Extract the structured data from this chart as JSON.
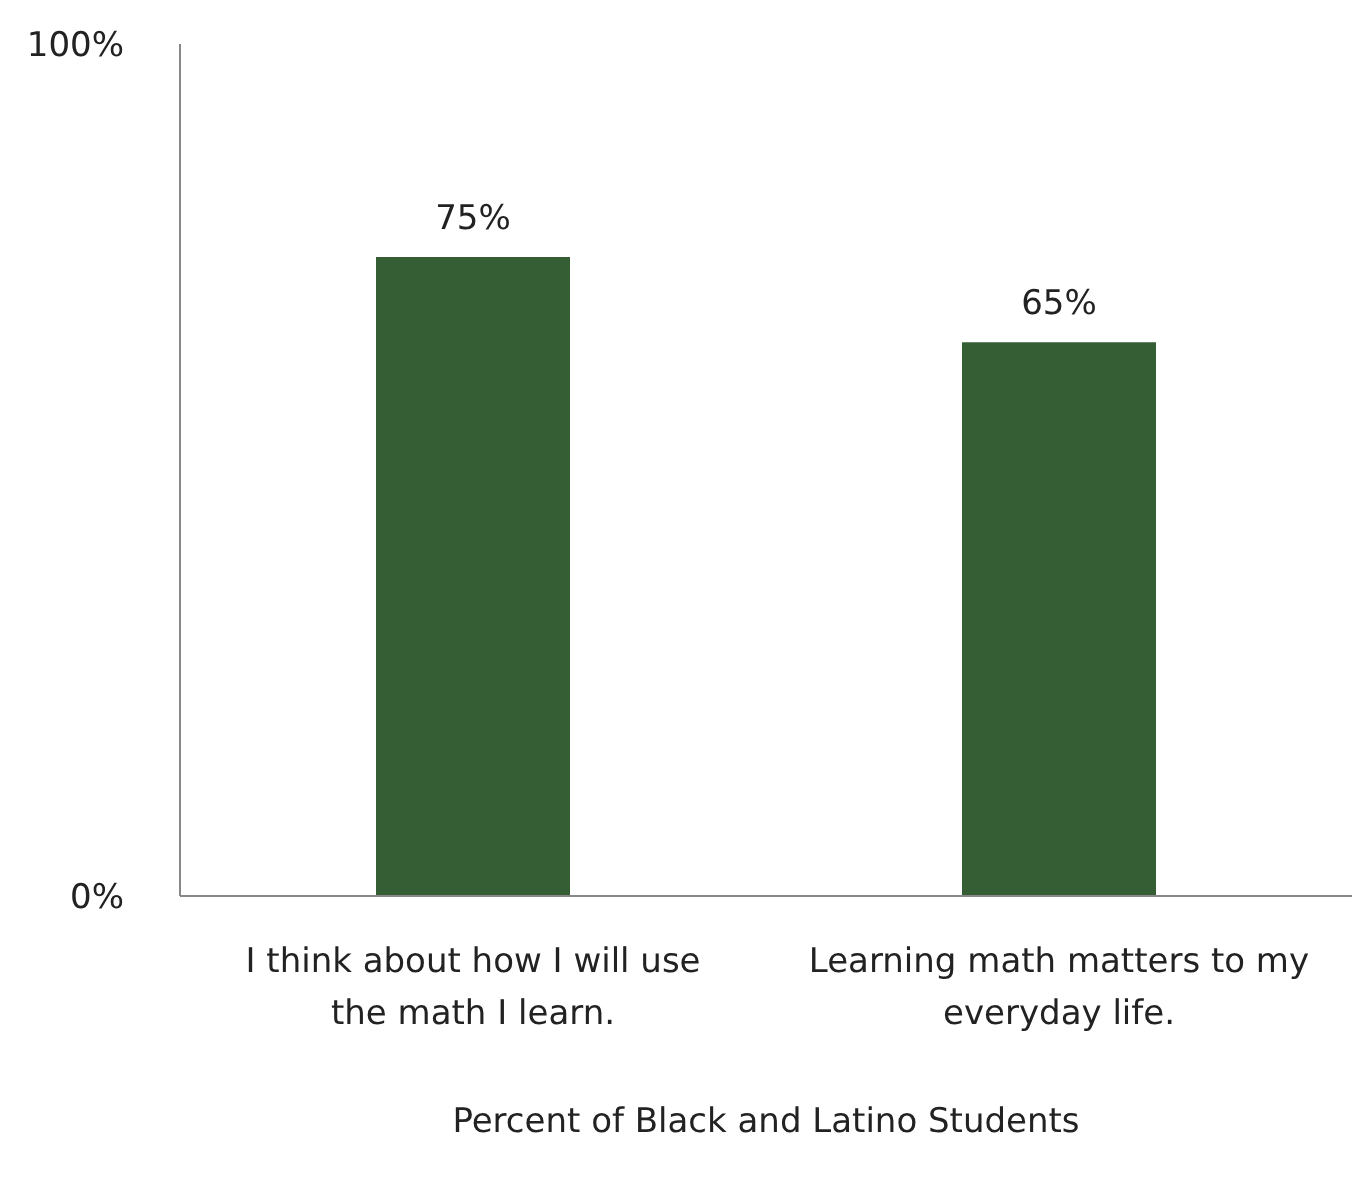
{
  "chart_data": {
    "type": "bar",
    "xlabel": "Percent of Black  and Latino Students",
    "categories": [
      "I think about how I will use the math I learn.",
      "Learning math matters to my everyday life."
    ],
    "values": [
      75,
      65
    ],
    "color": "#365e35",
    "value_labels": [
      "75%",
      "65%"
    ],
    "ylim": [
      0,
      100
    ],
    "yticks": [
      {
        "value": 0,
        "label": "0%"
      },
      {
        "value": 100,
        "label": "100%"
      }
    ],
    "grid": false,
    "legend": false
  }
}
